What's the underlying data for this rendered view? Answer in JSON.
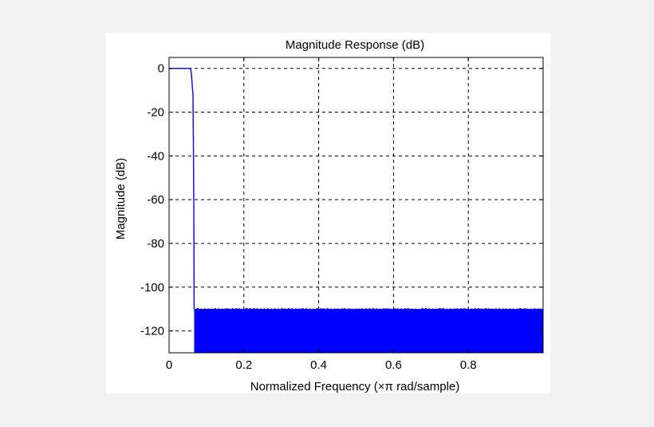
{
  "chart_data": {
    "type": "line",
    "title": "Magnitude Response (dB)",
    "xlabel": "Normalized Frequency (×π rad/sample)",
    "ylabel": "Magnitude (dB)",
    "xlim": [
      0,
      1
    ],
    "ylim": [
      -130,
      5
    ],
    "grid": true,
    "grid_style": "dashed",
    "line_color": "#0000ff",
    "xticks": [
      0,
      0.2,
      0.4,
      0.6,
      0.8
    ],
    "xtick_labels": [
      "0",
      "0.2",
      "0.4",
      "0.6",
      "0.8"
    ],
    "yticks": [
      0,
      -20,
      -40,
      -60,
      -80,
      -100,
      -120
    ],
    "ytick_labels": [
      "0",
      "-20",
      "-40",
      "-60",
      "-80",
      "-100",
      "-120"
    ],
    "series": [
      {
        "x": [
          0,
          0.058,
          0.06,
          0.063,
          0.064,
          0.066,
          0.067
        ],
        "values": [
          0,
          0,
          -3,
          -10,
          -12,
          -60,
          -110
        ]
      }
    ],
    "stopband": {
      "x_start": 0.067,
      "x_end": 1.0,
      "top": -110,
      "bottom": -130
    }
  }
}
